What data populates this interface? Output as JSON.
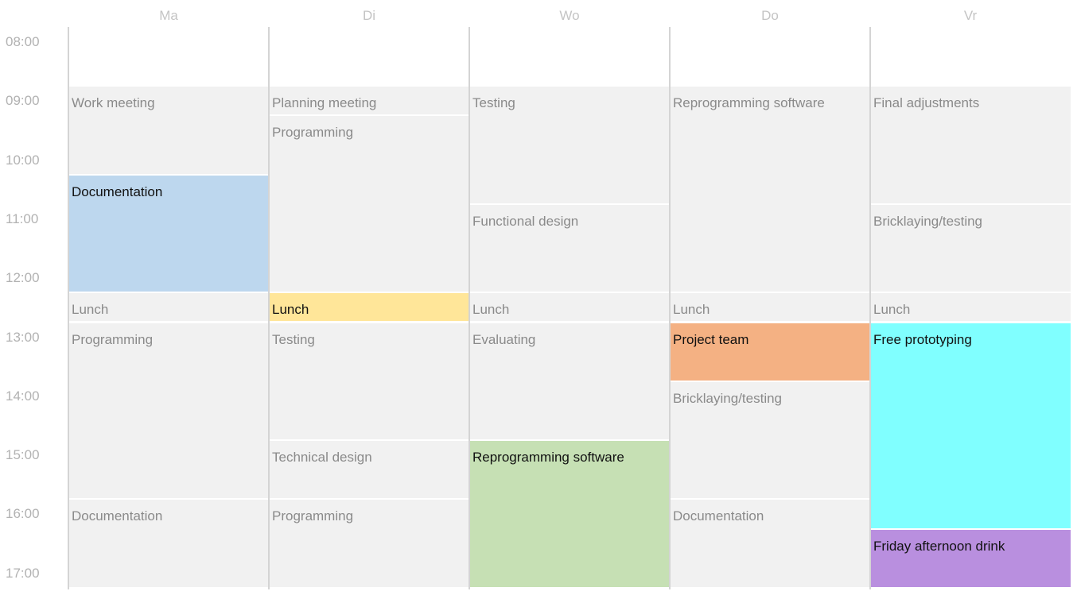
{
  "days": [
    "Ma",
    "Di",
    "Wo",
    "Do",
    "Vr"
  ],
  "times": [
    "08:00",
    "09:00",
    "10:00",
    "11:00",
    "12:00",
    "13:00",
    "14:00",
    "15:00",
    "16:00",
    "17:00"
  ],
  "colors": {
    "default_bg": "#f1f1f1",
    "blue": "#bdd7ee",
    "yellow": "#ffe699",
    "green": "#c6e0b4",
    "orange": "#f4b183",
    "cyan": "#80ffff",
    "purple": "#b98fdf"
  },
  "events": [
    {
      "day": 0,
      "start": "09:00",
      "end": "10:30",
      "title": "Work meeting",
      "color": "default_bg"
    },
    {
      "day": 0,
      "start": "10:30",
      "end": "12:30",
      "title": "Documentation",
      "color": "blue"
    },
    {
      "day": 0,
      "start": "12:30",
      "end": "13:00",
      "title": "Lunch",
      "color": "default_bg"
    },
    {
      "day": 0,
      "start": "13:00",
      "end": "16:00",
      "title": "Programming",
      "color": "default_bg"
    },
    {
      "day": 0,
      "start": "16:00",
      "end": "17:30",
      "title": "Documentation",
      "color": "default_bg"
    },
    {
      "day": 1,
      "start": "09:00",
      "end": "09:30",
      "title": "Planning meeting",
      "color": "default_bg"
    },
    {
      "day": 1,
      "start": "09:30",
      "end": "12:30",
      "title": "Programming",
      "color": "default_bg"
    },
    {
      "day": 1,
      "start": "12:30",
      "end": "13:00",
      "title": "Lunch",
      "color": "yellow"
    },
    {
      "day": 1,
      "start": "13:00",
      "end": "15:00",
      "title": "Testing",
      "color": "default_bg"
    },
    {
      "day": 1,
      "start": "15:00",
      "end": "16:00",
      "title": "Technical design",
      "color": "default_bg"
    },
    {
      "day": 1,
      "start": "16:00",
      "end": "17:30",
      "title": "Programming",
      "color": "default_bg"
    },
    {
      "day": 2,
      "start": "09:00",
      "end": "11:00",
      "title": "Testing",
      "color": "default_bg"
    },
    {
      "day": 2,
      "start": "11:00",
      "end": "12:30",
      "title": "Functional design",
      "color": "default_bg"
    },
    {
      "day": 2,
      "start": "12:30",
      "end": "13:00",
      "title": "Lunch",
      "color": "default_bg"
    },
    {
      "day": 2,
      "start": "13:00",
      "end": "15:00",
      "title": "Evaluating",
      "color": "default_bg"
    },
    {
      "day": 2,
      "start": "15:00",
      "end": "17:30",
      "title": "Reprogramming software",
      "color": "green"
    },
    {
      "day": 3,
      "start": "09:00",
      "end": "12:30",
      "title": "Reprogramming software",
      "color": "default_bg"
    },
    {
      "day": 3,
      "start": "12:30",
      "end": "13:00",
      "title": "Lunch",
      "color": "default_bg"
    },
    {
      "day": 3,
      "start": "13:00",
      "end": "14:00",
      "title": "Project team",
      "color": "orange"
    },
    {
      "day": 3,
      "start": "14:00",
      "end": "16:00",
      "title": "Bricklaying/testing",
      "color": "default_bg"
    },
    {
      "day": 3,
      "start": "16:00",
      "end": "17:30",
      "title": "Documentation",
      "color": "default_bg"
    },
    {
      "day": 4,
      "start": "09:00",
      "end": "11:00",
      "title": "Final adjustments",
      "color": "default_bg"
    },
    {
      "day": 4,
      "start": "11:00",
      "end": "12:30",
      "title": "Bricklaying/testing",
      "color": "default_bg"
    },
    {
      "day": 4,
      "start": "12:30",
      "end": "13:00",
      "title": "Lunch",
      "color": "default_bg"
    },
    {
      "day": 4,
      "start": "13:00",
      "end": "16:30",
      "title": "Free prototyping",
      "color": "cyan"
    },
    {
      "day": 4,
      "start": "16:30",
      "end": "17:30",
      "title": "Friday afternoon drink",
      "color": "purple"
    }
  ]
}
